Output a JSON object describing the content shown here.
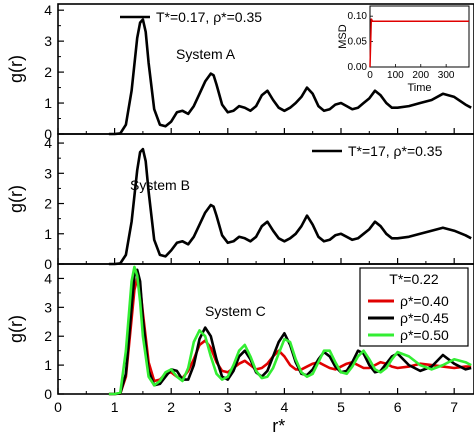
{
  "chart_data": [
    {
      "type": "line",
      "panel": "top",
      "annotation": "System A",
      "ylabel": "g(r)",
      "ylim": [
        0,
        4.2
      ],
      "yticks": [
        "0",
        "1",
        "2",
        "3",
        "4"
      ],
      "series": [
        {
          "name": "T*=0.17, ρ*=0.35",
          "color": "#000000",
          "x": [
            0.9,
            1.0,
            1.1,
            1.2,
            1.3,
            1.4,
            1.45,
            1.5,
            1.55,
            1.6,
            1.7,
            1.8,
            1.9,
            2.0,
            2.1,
            2.2,
            2.3,
            2.4,
            2.5,
            2.6,
            2.7,
            2.75,
            2.8,
            2.9,
            3.0,
            3.1,
            3.2,
            3.3,
            3.4,
            3.5,
            3.6,
            3.7,
            3.8,
            3.9,
            4.0,
            4.1,
            4.2,
            4.3,
            4.4,
            4.5,
            4.6,
            4.7,
            4.8,
            4.9,
            5.0,
            5.1,
            5.2,
            5.3,
            5.4,
            5.5,
            5.6,
            5.7,
            5.8,
            5.9,
            6.0,
            6.2,
            6.4,
            6.6,
            6.8,
            7.0,
            7.2,
            7.3
          ],
          "y": [
            0,
            0,
            0.02,
            0.3,
            1.4,
            3.1,
            3.6,
            3.7,
            3.3,
            2.3,
            0.8,
            0.3,
            0.25,
            0.4,
            0.7,
            0.75,
            0.65,
            0.9,
            1.3,
            1.7,
            1.95,
            1.9,
            1.6,
            0.95,
            0.7,
            0.75,
            0.9,
            0.85,
            0.75,
            0.9,
            1.25,
            1.4,
            1.1,
            0.85,
            0.75,
            0.85,
            1.0,
            1.2,
            1.5,
            1.3,
            0.9,
            0.75,
            0.8,
            0.95,
            1.0,
            0.9,
            0.8,
            0.85,
            1.0,
            1.15,
            1.4,
            1.25,
            1.0,
            0.85,
            0.85,
            0.9,
            1.0,
            1.1,
            1.3,
            1.2,
            0.95,
            0.85
          ]
        }
      ],
      "inset": {
        "xlabel": "Time",
        "ylabel": "MSD",
        "xlim": [
          0,
          390
        ],
        "ylim": [
          0,
          0.12
        ],
        "xticks": [
          "0",
          "100",
          "200",
          "300"
        ],
        "yticks": [
          "0.00",
          "0.05",
          "0.10"
        ],
        "series": [
          {
            "color": "#e00000",
            "x": [
              0,
              5,
              10,
              390
            ],
            "y": [
              0,
              0.095,
              0.09,
              0.09
            ]
          }
        ]
      }
    },
    {
      "type": "line",
      "panel": "middle",
      "annotation": "System B",
      "ylabel": "g(r)",
      "ylim": [
        0,
        4.3
      ],
      "yticks": [
        "0",
        "1",
        "2",
        "3",
        "4"
      ],
      "series": [
        {
          "name": "T*=17, ρ*=0.35",
          "color": "#000000",
          "x": [
            0.9,
            1.0,
            1.1,
            1.2,
            1.3,
            1.4,
            1.45,
            1.5,
            1.55,
            1.6,
            1.7,
            1.8,
            1.9,
            2.0,
            2.1,
            2.2,
            2.3,
            2.4,
            2.5,
            2.6,
            2.7,
            2.75,
            2.8,
            2.9,
            3.0,
            3.1,
            3.2,
            3.3,
            3.4,
            3.5,
            3.6,
            3.7,
            3.8,
            3.9,
            4.0,
            4.1,
            4.2,
            4.3,
            4.4,
            4.5,
            4.6,
            4.7,
            4.8,
            4.9,
            5.0,
            5.1,
            5.2,
            5.3,
            5.4,
            5.5,
            5.6,
            5.7,
            5.8,
            5.9,
            6.0,
            6.2,
            6.4,
            6.6,
            6.8,
            7.0,
            7.2,
            7.3
          ],
          "y": [
            0,
            0,
            0.02,
            0.3,
            1.4,
            3.1,
            3.7,
            3.8,
            3.4,
            2.4,
            0.8,
            0.3,
            0.25,
            0.45,
            0.7,
            0.75,
            0.65,
            0.9,
            1.3,
            1.7,
            1.95,
            1.9,
            1.6,
            0.95,
            0.7,
            0.75,
            0.9,
            0.85,
            0.75,
            0.9,
            1.25,
            1.4,
            1.1,
            0.85,
            0.75,
            0.85,
            1.0,
            1.25,
            1.6,
            1.3,
            0.9,
            0.75,
            0.8,
            0.95,
            1.0,
            0.9,
            0.8,
            0.85,
            1.0,
            1.15,
            1.4,
            1.25,
            1.0,
            0.85,
            0.85,
            0.9,
            1.0,
            1.1,
            1.2,
            1.1,
            0.95,
            0.85
          ]
        }
      ]
    },
    {
      "type": "line",
      "panel": "bottom",
      "annotation": "System C",
      "ylabel": "g(r)",
      "xlabel": "r*",
      "xlim": [
        0,
        7.35
      ],
      "ylim": [
        0,
        4.5
      ],
      "xticks": [
        "0",
        "1",
        "2",
        "3",
        "4",
        "5",
        "6",
        "7"
      ],
      "yticks": [
        "0",
        "1",
        "2",
        "3",
        "4"
      ],
      "legend_title": "T*=0.22",
      "legend_position": "top-right",
      "series": [
        {
          "name": "ρ*=0.40",
          "color": "#e00000",
          "x": [
            0.9,
            1.0,
            1.1,
            1.2,
            1.3,
            1.35,
            1.4,
            1.45,
            1.5,
            1.6,
            1.7,
            1.8,
            1.9,
            2.0,
            2.1,
            2.2,
            2.3,
            2.4,
            2.5,
            2.6,
            2.7,
            2.8,
            2.9,
            3.0,
            3.1,
            3.2,
            3.3,
            3.4,
            3.5,
            3.6,
            3.7,
            3.8,
            3.9,
            4.0,
            4.1,
            4.2,
            4.3,
            4.4,
            4.5,
            4.6,
            4.7,
            4.8,
            4.9,
            5.0,
            5.1,
            5.2,
            5.3,
            5.4,
            5.5,
            5.6,
            5.7,
            5.8,
            5.9,
            6.0,
            6.2,
            6.4,
            6.6,
            6.8,
            7.0,
            7.2,
            7.3
          ],
          "y": [
            0,
            0,
            0.02,
            0.6,
            2.6,
            3.6,
            4.0,
            3.7,
            2.8,
            1.1,
            0.45,
            0.5,
            0.7,
            0.75,
            0.6,
            0.55,
            0.8,
            1.2,
            1.7,
            1.85,
            1.6,
            1.1,
            0.8,
            0.75,
            0.9,
            1.05,
            1.15,
            1.0,
            0.85,
            0.9,
            1.05,
            1.3,
            1.5,
            1.3,
            1.0,
            0.85,
            0.85,
            0.95,
            1.05,
            1.1,
            1.0,
            0.9,
            0.85,
            0.95,
            1.05,
            1.1,
            1.0,
            0.9,
            0.9,
            1.0,
            1.1,
            1.05,
            0.95,
            0.9,
            0.95,
            1.05,
            1.0,
            0.95,
            0.9,
            0.95,
            0.95
          ]
        },
        {
          "name": "ρ*=0.45",
          "color": "#000000",
          "x": [
            0.9,
            1.0,
            1.1,
            1.2,
            1.3,
            1.35,
            1.4,
            1.45,
            1.5,
            1.6,
            1.7,
            1.8,
            1.9,
            2.0,
            2.1,
            2.2,
            2.3,
            2.4,
            2.5,
            2.6,
            2.7,
            2.8,
            2.9,
            3.0,
            3.1,
            3.2,
            3.3,
            3.4,
            3.5,
            3.6,
            3.7,
            3.8,
            3.9,
            4.0,
            4.1,
            4.2,
            4.3,
            4.4,
            4.5,
            4.6,
            4.7,
            4.8,
            4.9,
            5.0,
            5.1,
            5.2,
            5.3,
            5.4,
            5.5,
            5.6,
            5.7,
            5.8,
            5.9,
            6.0,
            6.2,
            6.4,
            6.6,
            6.8,
            7.0,
            7.2,
            7.3
          ],
          "y": [
            0,
            0,
            0.02,
            0.7,
            3.0,
            4.1,
            4.3,
            3.9,
            2.6,
            0.8,
            0.3,
            0.35,
            0.6,
            0.85,
            0.8,
            0.5,
            0.5,
            1.0,
            1.9,
            2.3,
            2.0,
            1.2,
            0.6,
            0.5,
            0.8,
            1.3,
            1.5,
            1.2,
            0.75,
            0.6,
            0.8,
            1.3,
            1.8,
            2.1,
            1.7,
            1.1,
            0.7,
            0.65,
            0.85,
            1.2,
            1.45,
            1.3,
            0.95,
            0.75,
            0.8,
            1.1,
            1.5,
            1.4,
            1.0,
            0.75,
            0.8,
            1.05,
            1.3,
            1.4,
            1.0,
            0.8,
            0.95,
            1.35,
            1.05,
            0.85,
            0.9
          ]
        },
        {
          "name": "ρ*=0.50",
          "color": "#33ee33",
          "x": [
            0.9,
            1.0,
            1.1,
            1.2,
            1.3,
            1.35,
            1.4,
            1.45,
            1.5,
            1.6,
            1.7,
            1.8,
            1.9,
            2.0,
            2.1,
            2.2,
            2.3,
            2.4,
            2.5,
            2.6,
            2.7,
            2.8,
            2.9,
            3.0,
            3.1,
            3.2,
            3.3,
            3.4,
            3.5,
            3.6,
            3.7,
            3.8,
            3.9,
            4.0,
            4.1,
            4.2,
            4.3,
            4.4,
            4.5,
            4.6,
            4.7,
            4.8,
            4.9,
            5.0,
            5.1,
            5.2,
            5.3,
            5.4,
            5.5,
            5.6,
            5.7,
            5.8,
            5.9,
            6.0,
            6.2,
            6.4,
            6.6,
            6.8,
            7.0,
            7.2,
            7.3
          ],
          "y": [
            0,
            0,
            0.05,
            1.5,
            3.9,
            4.4,
            4.1,
            3.2,
            2.0,
            0.6,
            0.3,
            0.45,
            0.75,
            0.85,
            0.6,
            0.45,
            0.9,
            1.8,
            2.2,
            2.0,
            1.3,
            0.7,
            0.5,
            0.6,
            1.0,
            1.5,
            1.7,
            1.3,
            0.8,
            0.55,
            0.6,
            0.9,
            1.4,
            1.9,
            1.8,
            1.2,
            0.75,
            0.6,
            0.7,
            1.1,
            1.5,
            1.5,
            1.1,
            0.75,
            0.7,
            0.95,
            1.3,
            1.5,
            1.2,
            0.85,
            0.75,
            0.9,
            1.2,
            1.45,
            1.3,
            1.0,
            0.85,
            1.0,
            1.2,
            1.1,
            1.0
          ]
        }
      ]
    }
  ]
}
